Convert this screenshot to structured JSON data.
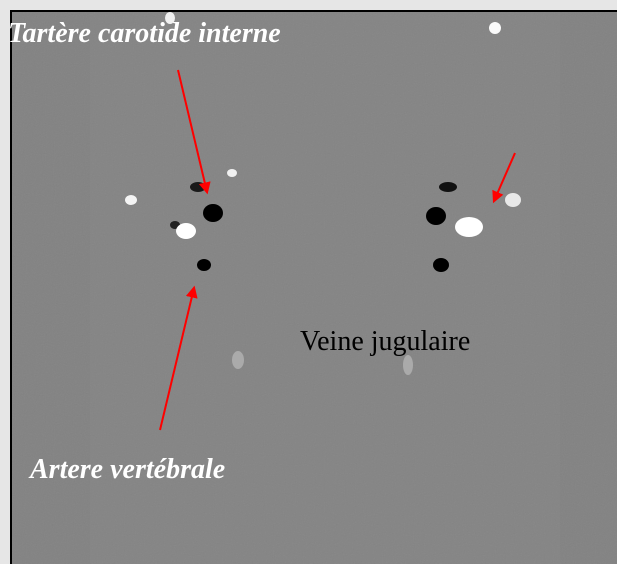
{
  "labels": {
    "carotid": "Tartère carotide interne",
    "jugular": "Veine jugulaire",
    "vertebral": "Artere vertébrale"
  }
}
